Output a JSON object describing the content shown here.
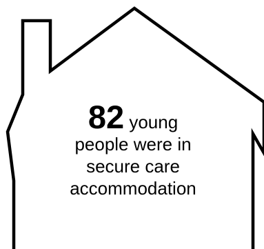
{
  "infographic": {
    "number": "82",
    "lead": "young",
    "line2": "people were in",
    "line3": "secure care",
    "line4": "accommodation"
  }
}
